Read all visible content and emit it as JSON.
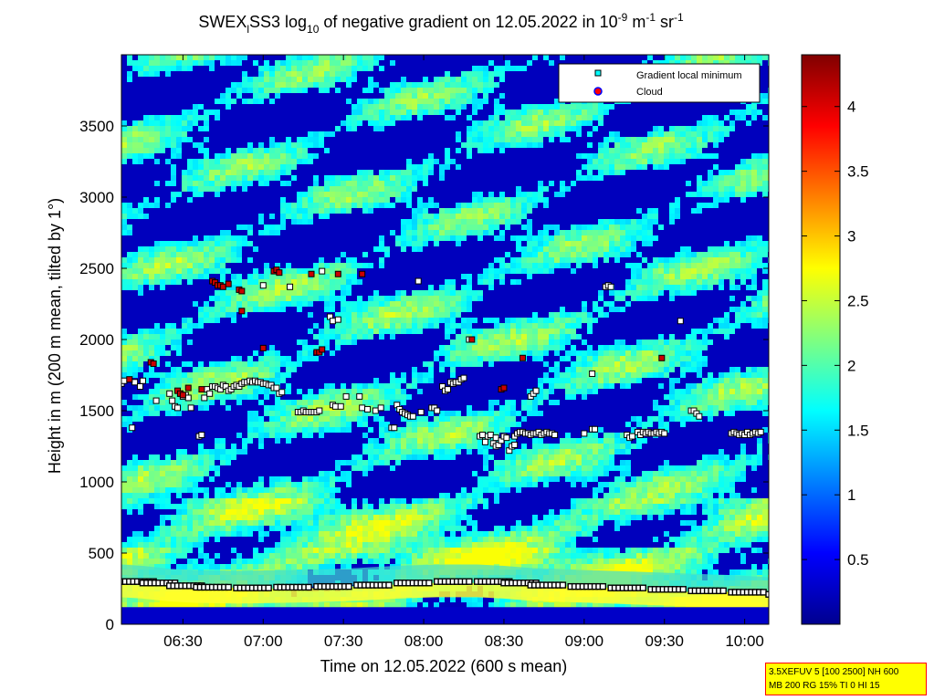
{
  "figure": {
    "title_parts": [
      "SWEX",
      "l",
      "SS3 log",
      "10",
      " of negative gradient on 12.05.2022 in 10",
      "-9",
      " m",
      "-1",
      " sr",
      "-1"
    ],
    "info_lines": [
      "3.5XEFUV 5 [100 2500] NH 600",
      "MB 200 RG 15% TI 0 HI 15"
    ]
  },
  "chart_data": {
    "type": "heatmap",
    "xlabel": "Time on 12.05.2022 (600 s mean)",
    "ylabel": "Height in m (200 m mean, tilted by 1°)",
    "x_ticks": [
      "06:30",
      "07:00",
      "07:30",
      "08:00",
      "08:30",
      "09:00",
      "09:30",
      "10:00"
    ],
    "x_tick_minutes": [
      390,
      420,
      450,
      480,
      510,
      540,
      570,
      600
    ],
    "xlim_minutes": [
      367,
      609
    ],
    "y_ticks": [
      0,
      500,
      1000,
      1500,
      2000,
      2500,
      3000,
      3500
    ],
    "ylim": [
      0,
      4000
    ],
    "colorbar": {
      "ticks": [
        0.5,
        1,
        1.5,
        2,
        2.5,
        3,
        3.5,
        4
      ],
      "range": [
        0,
        4.4
      ],
      "colormap": "jet"
    },
    "legend": {
      "placement": "top-right",
      "entries": [
        {
          "label": "Gradient local minimum",
          "marker": "square",
          "color": "#00ffff"
        },
        {
          "label": "Cloud",
          "marker": "circle",
          "color": "#ff0000",
          "edge": "#0000ff"
        }
      ]
    },
    "series": [
      {
        "name": "Gradient local minimum",
        "points": [
          [
            367,
            1690
          ],
          [
            368,
            1710
          ],
          [
            371,
            1380
          ],
          [
            372,
            1700
          ],
          [
            374,
            1670
          ],
          [
            375,
            1710
          ],
          [
            380,
            1570
          ],
          [
            385,
            1620
          ],
          [
            386,
            1570
          ],
          [
            387,
            1530
          ],
          [
            388,
            1520
          ],
          [
            389,
            1620
          ],
          [
            390,
            1600
          ],
          [
            391,
            1610
          ],
          [
            392,
            1590
          ],
          [
            393,
            1520
          ],
          [
            396,
            1320
          ],
          [
            397,
            1330
          ],
          [
            398,
            1590
          ],
          [
            399,
            1650
          ],
          [
            400,
            1620
          ],
          [
            401,
            1670
          ],
          [
            402,
            1670
          ],
          [
            403,
            1660
          ],
          [
            404,
            1650
          ],
          [
            405,
            1680
          ],
          [
            406,
            1670
          ],
          [
            407,
            1640
          ],
          [
            408,
            1650
          ],
          [
            409,
            1670
          ],
          [
            410,
            1680
          ],
          [
            411,
            1670
          ],
          [
            412,
            1690
          ],
          [
            413,
            1700
          ],
          [
            414,
            1700
          ],
          [
            415,
            1710
          ],
          [
            416,
            1700
          ],
          [
            417,
            1710
          ],
          [
            418,
            1700
          ],
          [
            419,
            1700
          ],
          [
            420,
            1690
          ],
          [
            421,
            1690
          ],
          [
            422,
            1680
          ],
          [
            423,
            1680
          ],
          [
            424,
            1660
          ],
          [
            425,
            1660
          ],
          [
            426,
            1620
          ],
          [
            427,
            1630
          ],
          [
            433,
            1490
          ],
          [
            434,
            1490
          ],
          [
            435,
            1500
          ],
          [
            436,
            1490
          ],
          [
            437,
            1490
          ],
          [
            438,
            1490
          ],
          [
            439,
            1490
          ],
          [
            440,
            1490
          ],
          [
            441,
            1500
          ],
          [
            446,
            1540
          ],
          [
            447,
            1530
          ],
          [
            449,
            1530
          ],
          [
            451,
            1600
          ],
          [
            456,
            1600
          ],
          [
            457,
            1520
          ],
          [
            459,
            1510
          ],
          [
            462,
            1500
          ],
          [
            464,
            1520
          ],
          [
            468,
            1380
          ],
          [
            469,
            1380
          ],
          [
            470,
            1540
          ],
          [
            471,
            1510
          ],
          [
            472,
            1490
          ],
          [
            473,
            1480
          ],
          [
            474,
            1470
          ],
          [
            475,
            1460
          ],
          [
            476,
            1460
          ],
          [
            479,
            1490
          ],
          [
            483,
            1520
          ],
          [
            484,
            1520
          ],
          [
            485,
            1500
          ],
          [
            487,
            1670
          ],
          [
            488,
            1640
          ],
          [
            489,
            1650
          ],
          [
            490,
            1700
          ],
          [
            491,
            1690
          ],
          [
            492,
            1700
          ],
          [
            493,
            1700
          ],
          [
            494,
            1720
          ],
          [
            495,
            1730
          ],
          [
            501,
            1320
          ],
          [
            502,
            1330
          ],
          [
            503,
            1280
          ],
          [
            504,
            1320
          ],
          [
            505,
            1330
          ],
          [
            506,
            1270
          ],
          [
            507,
            1310
          ],
          [
            507,
            1250
          ],
          [
            508,
            1260
          ],
          [
            509,
            1290
          ],
          [
            510,
            1320
          ],
          [
            511,
            1310
          ],
          [
            512,
            1220
          ],
          [
            513,
            1250
          ],
          [
            514,
            1260
          ],
          [
            514,
            1320
          ],
          [
            515,
            1340
          ],
          [
            516,
            1350
          ],
          [
            517,
            1350
          ],
          [
            518,
            1340
          ],
          [
            519,
            1340
          ],
          [
            520,
            1330
          ],
          [
            521,
            1340
          ],
          [
            522,
            1340
          ],
          [
            523,
            1350
          ],
          [
            524,
            1330
          ],
          [
            525,
            1340
          ],
          [
            526,
            1350
          ],
          [
            527,
            1340
          ],
          [
            528,
            1340
          ],
          [
            529,
            1330
          ],
          [
            540,
            1340
          ],
          [
            543,
            1370
          ],
          [
            544,
            1370
          ],
          [
            548,
            2370
          ],
          [
            549,
            2380
          ],
          [
            550,
            2370
          ],
          [
            556,
            1330
          ],
          [
            557,
            1310
          ],
          [
            558,
            1320
          ],
          [
            560,
            1350
          ],
          [
            561,
            1330
          ],
          [
            562,
            1350
          ],
          [
            563,
            1340
          ],
          [
            564,
            1350
          ],
          [
            565,
            1340
          ],
          [
            566,
            1340
          ],
          [
            567,
            1350
          ],
          [
            568,
            1340
          ],
          [
            569,
            1350
          ],
          [
            570,
            1340
          ],
          [
            595,
            1340
          ],
          [
            596,
            1350
          ],
          [
            597,
            1340
          ],
          [
            598,
            1330
          ],
          [
            599,
            1340
          ],
          [
            600,
            1330
          ],
          [
            601,
            1350
          ],
          [
            602,
            1330
          ],
          [
            603,
            1340
          ],
          [
            604,
            1350
          ],
          [
            605,
            1340
          ],
          [
            606,
            1350
          ],
          [
            420,
            2380
          ],
          [
            430,
            2370
          ],
          [
            442,
            2480
          ],
          [
            445,
            2160
          ],
          [
            446,
            2130
          ],
          [
            448,
            2140
          ],
          [
            478,
            2410
          ],
          [
            497,
            2000
          ],
          [
            520,
            1600
          ],
          [
            521,
            1620
          ],
          [
            522,
            1640
          ],
          [
            543,
            1760
          ],
          [
            576,
            2130
          ],
          [
            580,
            1500
          ],
          [
            581,
            1500
          ],
          [
            582,
            1480
          ],
          [
            583,
            1460
          ]
        ]
      },
      {
        "name": "Cloud",
        "points": [
          [
            370,
            1720
          ],
          [
            378,
            1840
          ],
          [
            379,
            1830
          ],
          [
            388,
            1640
          ],
          [
            389,
            1620
          ],
          [
            390,
            1610
          ],
          [
            392,
            1660
          ],
          [
            397,
            1650
          ],
          [
            401,
            2410
          ],
          [
            402,
            2400
          ],
          [
            403,
            2380
          ],
          [
            404,
            2380
          ],
          [
            405,
            2370
          ],
          [
            407,
            2390
          ],
          [
            411,
            2350
          ],
          [
            412,
            2340
          ],
          [
            412,
            2200
          ],
          [
            420,
            1940
          ],
          [
            424,
            2480
          ],
          [
            425,
            2490
          ],
          [
            426,
            2470
          ],
          [
            438,
            2460
          ],
          [
            440,
            1910
          ],
          [
            441,
            1910
          ],
          [
            442,
            1930
          ],
          [
            448,
            2460
          ],
          [
            457,
            2460
          ],
          [
            498,
            2000
          ],
          [
            509,
            1650
          ],
          [
            510,
            1660
          ],
          [
            517,
            1870
          ],
          [
            569,
            1870
          ]
        ]
      }
    ],
    "surface_layer": [
      [
        367,
        300
      ],
      [
        375,
        290
      ],
      [
        385,
        270
      ],
      [
        395,
        260
      ],
      [
        410,
        255
      ],
      [
        425,
        260
      ],
      [
        440,
        265
      ],
      [
        455,
        275
      ],
      [
        470,
        290
      ],
      [
        485,
        300
      ],
      [
        500,
        300
      ],
      [
        510,
        290
      ],
      [
        520,
        275
      ],
      [
        535,
        265
      ],
      [
        550,
        255
      ],
      [
        565,
        245
      ],
      [
        580,
        235
      ],
      [
        595,
        225
      ],
      [
        609,
        210
      ]
    ]
  }
}
